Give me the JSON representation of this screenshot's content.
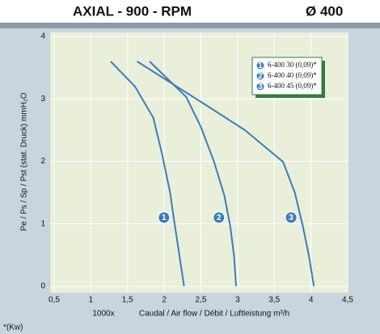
{
  "chart_data": {
    "type": "line",
    "title": "AXIAL - 900 - RPM",
    "subtitle": "Ø 400",
    "x_label": "Caudal / Air flow / Débit / Luftleistung m³/h",
    "x_multiplier": "1000x",
    "y_label": "Pe / Ps / Sp / Pst (stat. Druck) mmH₂O",
    "footnote": "*(Kw)",
    "xlim": [
      0.5,
      4.5
    ],
    "ylim": [
      0,
      4
    ],
    "xticks": [
      {
        "value": 0.5,
        "label": "0,5"
      },
      1,
      {
        "value": 1.5,
        "label": "1,5"
      },
      2,
      {
        "value": 2.5,
        "label": "2,5"
      },
      3,
      {
        "value": 3.5,
        "label": "3,5"
      },
      4,
      {
        "value": 4.5,
        "label": "4,5"
      }
    ],
    "yticks": [
      0,
      1,
      2,
      3,
      4
    ],
    "grid": true,
    "series": [
      {
        "name": "6-400 30 (0,09)*",
        "marker": "1",
        "color": "#3d7cbd",
        "x": [
          1.27,
          1.6,
          1.85,
          1.97,
          2.08,
          2.13,
          2.2,
          2.27
        ],
        "values": [
          3.6,
          3.2,
          2.7,
          2.12,
          1.5,
          1.09,
          0.55,
          0
        ]
      },
      {
        "name": "6-400 40 (0,09)*",
        "marker": "2",
        "color": "#3d7cbd",
        "x": [
          1.8,
          2.3,
          2.5,
          2.68,
          2.82,
          2.9,
          2.95,
          2.98
        ],
        "values": [
          3.6,
          3.03,
          2.55,
          1.99,
          1.45,
          0.96,
          0.5,
          0
        ]
      },
      {
        "name": "6-400 45 (0,09)*",
        "marker": "3",
        "color": "#3d7cbd",
        "x": [
          1.63,
          2.57,
          3.1,
          3.62,
          3.78,
          3.89,
          3.97,
          4.04
        ],
        "values": [
          3.6,
          2.9,
          2.5,
          1.99,
          1.5,
          0.96,
          0.5,
          0
        ]
      }
    ]
  }
}
